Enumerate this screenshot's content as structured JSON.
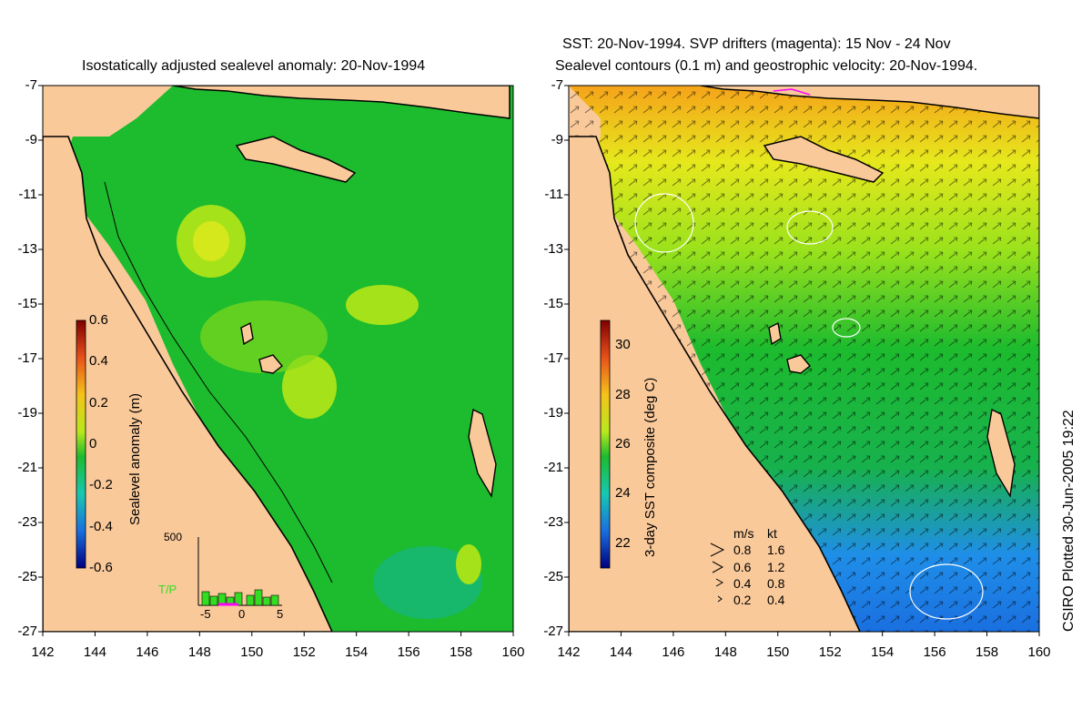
{
  "left_panel": {
    "title": "Isostatically adjusted sealevel anomaly: 20-Nov-1994",
    "colorbar": {
      "label": "Sealevel anomaly (m)",
      "ticks": [
        "0.6",
        "0.4",
        "0.2",
        "0",
        "-0.2",
        "-0.4",
        "-0.6"
      ]
    },
    "tp_inset": {
      "top_label": "500",
      "name": "T/P",
      "x_ticks": [
        "-5",
        "0",
        "5"
      ]
    }
  },
  "right_panel": {
    "title_line1": "SST: 20-Nov-1994. SVP drifters (magenta): 15 Nov - 24 Nov",
    "title_line2": "Sealevel contours (0.1 m) and geostrophic velocity: 20-Nov-1994.",
    "colorbar": {
      "label": "3-day SST composite (deg C)",
      "ticks": [
        "30",
        "28",
        "26",
        "24",
        "22"
      ]
    },
    "velocity_legend": {
      "header_ms": "m/s",
      "header_kt": "kt",
      "rows": [
        {
          "ms": "0.8",
          "kt": "1.6"
        },
        {
          "ms": "0.6",
          "kt": "1.2"
        },
        {
          "ms": "0.4",
          "kt": "0.8"
        },
        {
          "ms": "0.2",
          "kt": "0.4"
        }
      ]
    }
  },
  "axes": {
    "y_ticks": [
      "-7",
      "-9",
      "-11",
      "-13",
      "-15",
      "-17",
      "-19",
      "-21",
      "-23",
      "-25",
      "-27"
    ],
    "x_ticks": [
      "142",
      "144",
      "146",
      "148",
      "150",
      "152",
      "154",
      "156",
      "158",
      "160"
    ]
  },
  "credit": "CSIRO Plotted 30-Jun-2005 19:22",
  "colors": {
    "land": "#f9c99a",
    "ocean_green": "#1dbb2e",
    "anomaly_high": "#a6e21a",
    "sst_orange": "#f5a31a",
    "sst_yellow": "#e6e81c",
    "sst_blue": "#1f8ee8",
    "drifter_magenta": "#ff00ff"
  }
}
